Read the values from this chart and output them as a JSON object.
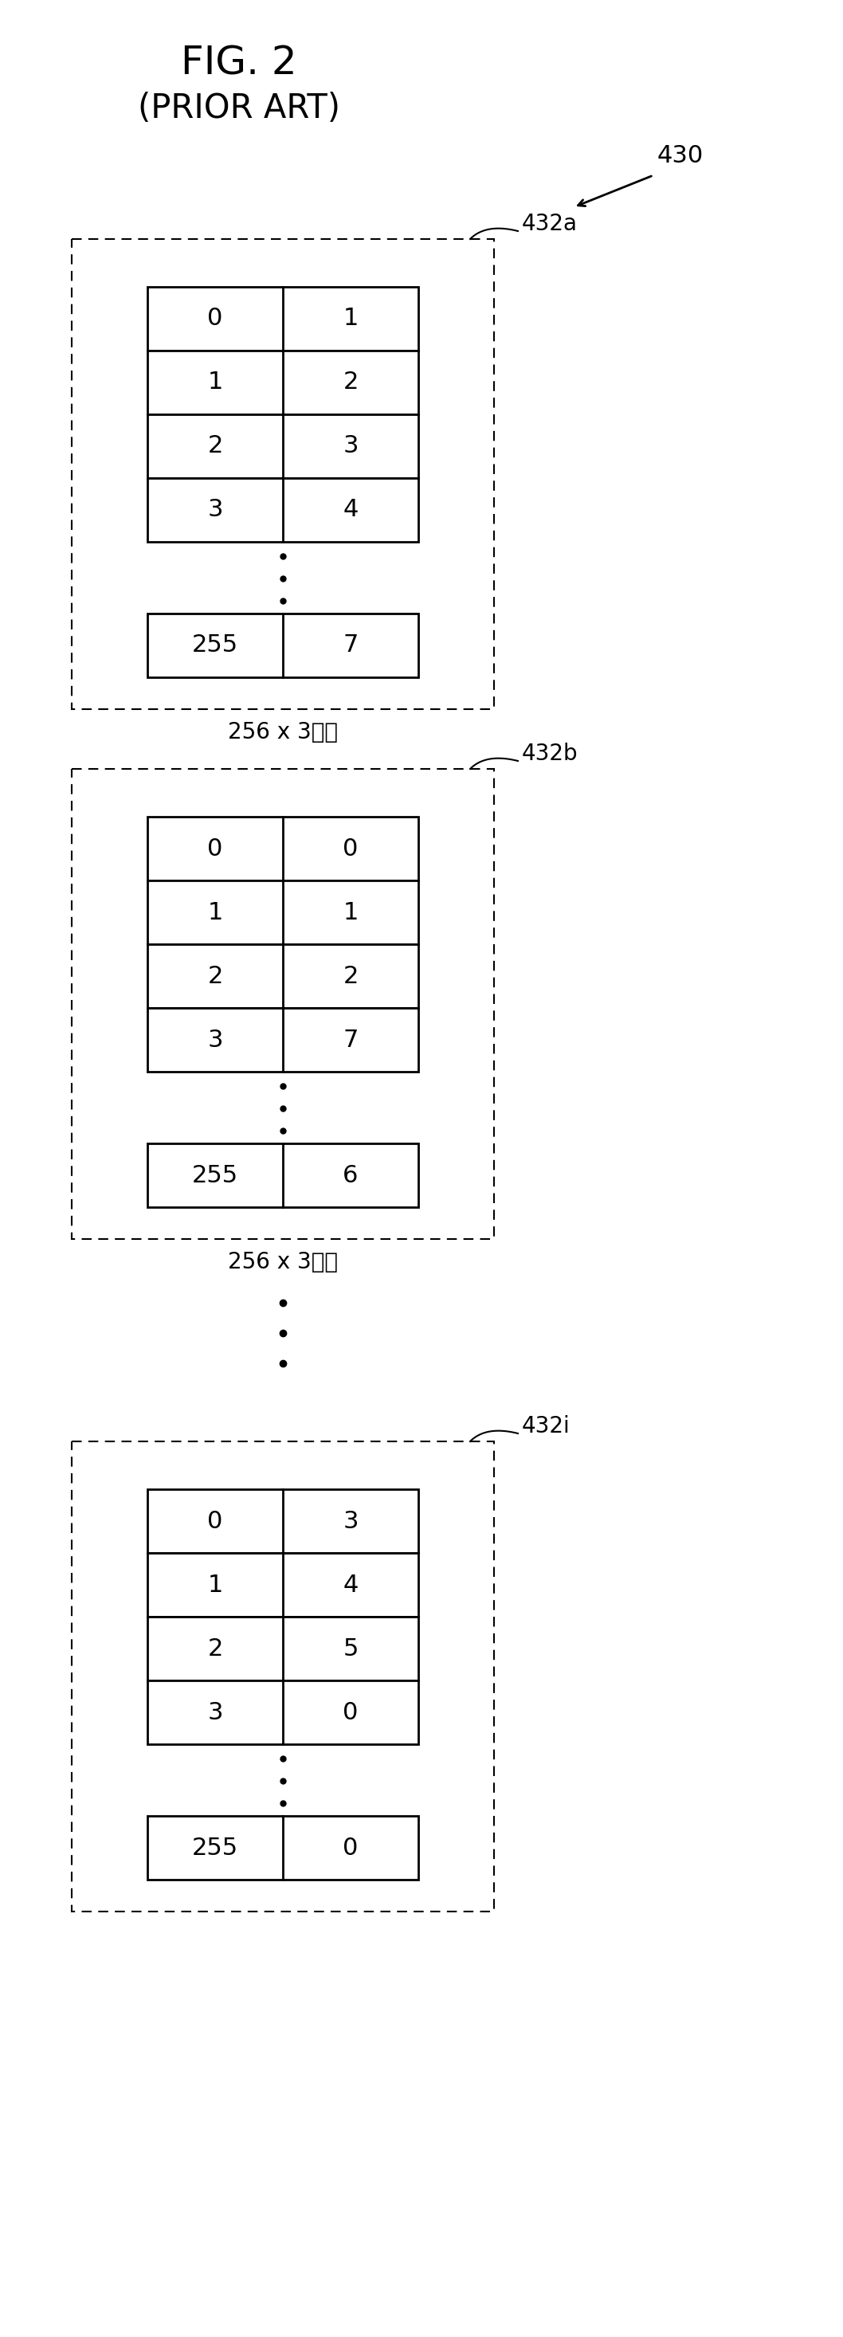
{
  "title_line1": "FIG. 2",
  "title_line2": "(PRIOR ART)",
  "label_430": "430",
  "tables": [
    {
      "label": "432a",
      "rows": [
        [
          "0",
          "1"
        ],
        [
          "1",
          "2"
        ],
        [
          "2",
          "3"
        ],
        [
          "3",
          "4"
        ]
      ],
      "last_row": [
        "255",
        "7"
      ],
      "size_label": "256 x 3비트"
    },
    {
      "label": "432b",
      "rows": [
        [
          "0",
          "0"
        ],
        [
          "1",
          "1"
        ],
        [
          "2",
          "2"
        ],
        [
          "3",
          "7"
        ]
      ],
      "last_row": [
        "255",
        "6"
      ],
      "size_label": "256 x 3비트"
    },
    {
      "label": "432i",
      "rows": [
        [
          "0",
          "3"
        ],
        [
          "1",
          "4"
        ],
        [
          "2",
          "5"
        ],
        [
          "3",
          "0"
        ]
      ],
      "last_row": [
        "255",
        "0"
      ],
      "size_label": ""
    }
  ],
  "bg_color": "#ffffff",
  "text_color": "#000000"
}
